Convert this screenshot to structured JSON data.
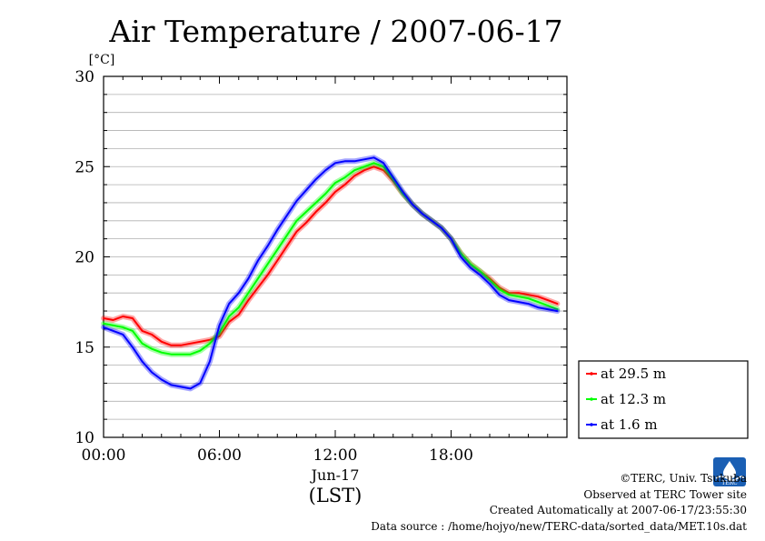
{
  "chart_data": {
    "type": "line",
    "title": "Air Temperature / 2007-06-17",
    "ylabel": "[°C]",
    "ylim": [
      10,
      30
    ],
    "yticks": [
      "10",
      "15",
      "20",
      "25",
      "30"
    ],
    "xlim": [
      0,
      24
    ],
    "xticks": [
      {
        "hour": 0,
        "label": "00:00"
      },
      {
        "hour": 6,
        "label": "06:00"
      },
      {
        "hour": 12,
        "label": "12:00"
      },
      {
        "hour": 18,
        "label": "18:00"
      }
    ],
    "date_label": "Jun-17",
    "xunit_label": "(LST)",
    "grid": true,
    "legend_position": "bottom-right, outside plot",
    "series": [
      {
        "name": "at 29.5 m",
        "color": "#ff0000",
        "x": [
          0,
          0.5,
          1,
          1.5,
          2,
          2.5,
          3,
          3.5,
          4,
          4.5,
          5,
          5.5,
          6,
          6.5,
          7,
          7.5,
          8,
          8.5,
          9,
          9.5,
          10,
          10.5,
          11,
          11.5,
          12,
          12.5,
          13,
          13.5,
          14,
          14.5,
          15,
          15.5,
          16,
          16.5,
          17,
          17.5,
          18,
          18.5,
          19,
          19.5,
          20,
          20.5,
          21,
          21.5,
          22,
          22.5,
          23,
          23.5
        ],
        "values": [
          16.6,
          16.5,
          16.7,
          16.6,
          15.9,
          15.7,
          15.3,
          15.1,
          15.1,
          15.2,
          15.3,
          15.4,
          15.6,
          16.4,
          16.8,
          17.6,
          18.3,
          19.0,
          19.8,
          20.6,
          21.4,
          21.9,
          22.5,
          23.0,
          23.6,
          24.0,
          24.5,
          24.8,
          25.0,
          24.8,
          24.2,
          23.5,
          22.9,
          22.4,
          22.0,
          21.6,
          21.0,
          20.2,
          19.6,
          19.2,
          18.8,
          18.3,
          18.0,
          18.0,
          17.9,
          17.8,
          17.6,
          17.4
        ]
      },
      {
        "name": "at 12.3 m",
        "color": "#00ff00",
        "x": [
          0,
          0.5,
          1,
          1.5,
          2,
          2.5,
          3,
          3.5,
          4,
          4.5,
          5,
          5.5,
          6,
          6.5,
          7,
          7.5,
          8,
          8.5,
          9,
          9.5,
          10,
          10.5,
          11,
          11.5,
          12,
          12.5,
          13,
          13.5,
          14,
          14.5,
          15,
          15.5,
          16,
          16.5,
          17,
          17.5,
          18,
          18.5,
          19,
          19.5,
          20,
          20.5,
          21,
          21.5,
          22,
          22.5,
          23,
          23.5
        ],
        "values": [
          16.3,
          16.2,
          16.1,
          15.9,
          15.2,
          14.9,
          14.7,
          14.6,
          14.6,
          14.6,
          14.8,
          15.2,
          15.8,
          16.7,
          17.2,
          18.0,
          18.8,
          19.6,
          20.4,
          21.2,
          22.0,
          22.5,
          23.0,
          23.5,
          24.1,
          24.4,
          24.8,
          25.0,
          25.2,
          25.0,
          24.3,
          23.5,
          22.9,
          22.4,
          22.0,
          21.6,
          21.0,
          20.2,
          19.6,
          19.2,
          18.7,
          18.2,
          17.9,
          17.8,
          17.7,
          17.5,
          17.3,
          17.1
        ]
      },
      {
        "name": "at 1.6 m",
        "color": "#0000ff",
        "x": [
          0,
          0.5,
          1,
          1.5,
          2,
          2.5,
          3,
          3.5,
          4,
          4.5,
          5,
          5.5,
          6,
          6.5,
          7,
          7.5,
          8,
          8.5,
          9,
          9.5,
          10,
          10.5,
          11,
          11.5,
          12,
          12.5,
          13,
          13.5,
          14,
          14.5,
          15,
          15.5,
          16,
          16.5,
          17,
          17.5,
          18,
          18.5,
          19,
          19.5,
          20,
          20.5,
          21,
          21.5,
          22,
          22.5,
          23,
          23.5
        ],
        "values": [
          16.1,
          15.9,
          15.7,
          15.0,
          14.2,
          13.6,
          13.2,
          12.9,
          12.8,
          12.7,
          13.0,
          14.2,
          16.2,
          17.4,
          18.0,
          18.8,
          19.8,
          20.6,
          21.5,
          22.3,
          23.1,
          23.7,
          24.3,
          24.8,
          25.2,
          25.3,
          25.3,
          25.4,
          25.5,
          25.2,
          24.4,
          23.6,
          22.9,
          22.4,
          22.0,
          21.6,
          21.0,
          20.0,
          19.4,
          19.0,
          18.5,
          17.9,
          17.6,
          17.5,
          17.4,
          17.2,
          17.1,
          17.0
        ]
      }
    ]
  },
  "footer": {
    "copyright": "©TERC, Univ. Tsukuba",
    "site": "Observed at TERC Tower site",
    "created": "Created Automatically at 2007-06-17/23:55:30",
    "source": "Data source : /home/hojyo/new/TERC-data/sorted_data/MET.10s.dat"
  },
  "logo": {
    "text": "TERC",
    "color": "#1a5fb4"
  }
}
